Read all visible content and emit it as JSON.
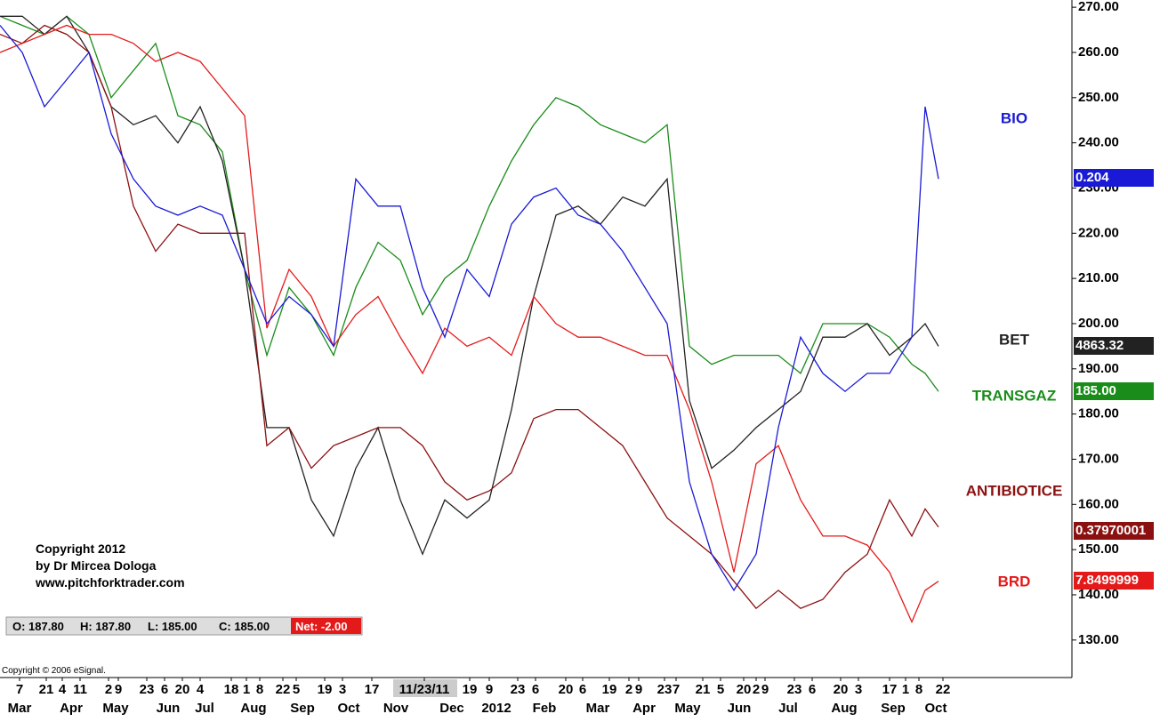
{
  "chart_data": {
    "type": "line",
    "x": [
      0,
      2.5,
      5,
      7.5,
      10,
      12.5,
      15,
      17.5,
      20,
      22.5,
      25,
      27.5,
      30,
      32.5,
      35,
      37.5,
      40,
      42.5,
      45,
      47.5,
      50,
      52.5,
      55,
      57.5,
      60,
      62.5,
      65,
      67.5,
      70,
      72.5,
      75,
      77.5,
      80,
      82.5,
      85,
      87.5,
      90,
      92.5,
      95,
      97.5,
      100,
      102.5,
      104,
      105.5
    ],
    "xlim": [
      0,
      120
    ],
    "ylim": [
      121.7,
      271.6
    ],
    "yticks": [
      {
        "value": 130,
        "label": "130.00"
      },
      {
        "value": 140,
        "label": "140.00"
      },
      {
        "value": 150,
        "label": "150.00"
      },
      {
        "value": 160,
        "label": "160.00"
      },
      {
        "value": 170,
        "label": "170.00"
      },
      {
        "value": 180,
        "label": "180.00"
      },
      {
        "value": 190,
        "label": "190.00"
      },
      {
        "value": 200,
        "label": "200.00"
      },
      {
        "value": 210,
        "label": "210.00"
      },
      {
        "value": 220,
        "label": "220.00"
      },
      {
        "value": 230,
        "label": "230.00"
      },
      {
        "value": 240,
        "label": "240.00"
      },
      {
        "value": 250,
        "label": "250.00"
      },
      {
        "value": 260,
        "label": "260.00"
      },
      {
        "value": 270,
        "label": "270.00"
      }
    ],
    "xticks": [
      {
        "value": 2.2,
        "label": "7"
      },
      {
        "value": 5.2,
        "label": "21"
      },
      {
        "value": 7,
        "label": "4"
      },
      {
        "value": 9,
        "label": "11"
      },
      {
        "value": 12.2,
        "label": "2"
      },
      {
        "value": 13.3,
        "label": "9"
      },
      {
        "value": 16.5,
        "label": "23"
      },
      {
        "value": 18.5,
        "label": "6"
      },
      {
        "value": 20.5,
        "label": "20"
      },
      {
        "value": 22.5,
        "label": "4"
      },
      {
        "value": 26,
        "label": "18"
      },
      {
        "value": 27.7,
        "label": "1"
      },
      {
        "value": 29.2,
        "label": "8"
      },
      {
        "value": 31.8,
        "label": "22"
      },
      {
        "value": 33.3,
        "label": "5"
      },
      {
        "value": 36.5,
        "label": "19"
      },
      {
        "value": 38.5,
        "label": "3"
      },
      {
        "value": 41.8,
        "label": "17"
      },
      {
        "value": 47.7,
        "label": "11/23/11"
      },
      {
        "value": 52.8,
        "label": "19"
      },
      {
        "value": 55,
        "label": "9"
      },
      {
        "value": 58.2,
        "label": "23"
      },
      {
        "value": 60.2,
        "label": "6"
      },
      {
        "value": 63.6,
        "label": "20"
      },
      {
        "value": 65.5,
        "label": "6"
      },
      {
        "value": 68.5,
        "label": "19"
      },
      {
        "value": 70.7,
        "label": "2"
      },
      {
        "value": 71.8,
        "label": "9"
      },
      {
        "value": 74.7,
        "label": "23"
      },
      {
        "value": 76,
        "label": "7"
      },
      {
        "value": 79,
        "label": "21"
      },
      {
        "value": 81,
        "label": "5"
      },
      {
        "value": 83.6,
        "label": "20"
      },
      {
        "value": 85,
        "label": "2"
      },
      {
        "value": 86,
        "label": "9"
      },
      {
        "value": 89.3,
        "label": "23"
      },
      {
        "value": 91.3,
        "label": "6"
      },
      {
        "value": 94.5,
        "label": "20"
      },
      {
        "value": 96.5,
        "label": "3"
      },
      {
        "value": 100,
        "label": "17"
      },
      {
        "value": 101.8,
        "label": "1"
      },
      {
        "value": 103.3,
        "label": "8"
      },
      {
        "value": 106,
        "label": "22"
      }
    ],
    "xticks_months": [
      {
        "value": 2.2,
        "label": "Mar"
      },
      {
        "value": 8,
        "label": "Apr"
      },
      {
        "value": 13,
        "label": "May"
      },
      {
        "value": 18.9,
        "label": "Jun"
      },
      {
        "value": 23,
        "label": "Jul"
      },
      {
        "value": 28.5,
        "label": "Aug"
      },
      {
        "value": 34,
        "label": "Sep"
      },
      {
        "value": 39.2,
        "label": "Oct"
      },
      {
        "value": 44.5,
        "label": "Nov"
      },
      {
        "value": 50.8,
        "label": "Dec"
      },
      {
        "value": 55.8,
        "label": "2012"
      },
      {
        "value": 61.2,
        "label": "Feb"
      },
      {
        "value": 67.2,
        "label": "Mar"
      },
      {
        "value": 72.4,
        "label": "Apr"
      },
      {
        "value": 77.3,
        "label": "May"
      },
      {
        "value": 83.1,
        "label": "Jun"
      },
      {
        "value": 88.6,
        "label": "Jul"
      },
      {
        "value": 94.9,
        "label": "Aug"
      },
      {
        "value": 100.4,
        "label": "Sep"
      },
      {
        "value": 105.2,
        "label": "Oct"
      }
    ],
    "series": [
      {
        "name": "TRANSGAZ",
        "color": "#1a8c1a",
        "last_label": "185.00",
        "values": [
          268,
          266,
          264,
          268,
          264,
          250,
          256,
          262,
          246,
          244,
          238,
          212,
          193,
          208,
          202,
          193,
          208,
          218,
          214,
          202,
          210,
          214,
          226,
          236,
          244,
          250,
          248,
          244,
          242,
          240,
          244,
          195,
          191,
          193,
          193,
          193,
          189,
          200,
          200,
          200,
          197,
          191,
          189,
          185
        ]
      },
      {
        "name": "BET",
        "color": "#222222",
        "last_label": "4863.32",
        "values": [
          268,
          268,
          264,
          268,
          260,
          248,
          244,
          246,
          240,
          248,
          236,
          212,
          177,
          177,
          161,
          153,
          168,
          177,
          161,
          149,
          161,
          157,
          161,
          181,
          206,
          224,
          226,
          222,
          228,
          226,
          232,
          183,
          168,
          172,
          177,
          181,
          185,
          197,
          197,
          200,
          193,
          197,
          200,
          195
        ]
      },
      {
        "name": "ANTIBIOTICE",
        "color": "#8b1111",
        "last_label": "0.37970001",
        "values": [
          264,
          262,
          266,
          264,
          260,
          248,
          226,
          216,
          222,
          220,
          220,
          220,
          173,
          177,
          168,
          173,
          175,
          177,
          177,
          173,
          165,
          161,
          163,
          167,
          179,
          181,
          181,
          177,
          173,
          165,
          157,
          153,
          149,
          143,
          137,
          141,
          137,
          139,
          145,
          149,
          161,
          153,
          159,
          155
        ]
      },
      {
        "name": "BRD",
        "color": "#e41a1a",
        "last_label": "7.8499999",
        "values": [
          260,
          262,
          264,
          266,
          264,
          264,
          262,
          258,
          260,
          258,
          252,
          246,
          199,
          212,
          206,
          195,
          202,
          206,
          197,
          189,
          199,
          195,
          197,
          193,
          206,
          200,
          197,
          197,
          195,
          193,
          193,
          181,
          165,
          145,
          169,
          173,
          161,
          153,
          153,
          151,
          145,
          134,
          141,
          143
        ]
      },
      {
        "name": "BIO",
        "color": "#1a1ad6",
        "last_label": "0.204",
        "values": [
          266,
          260,
          248,
          254,
          260,
          242,
          232,
          226,
          224,
          226,
          224,
          212,
          200,
          206,
          202,
          195,
          232,
          226,
          226,
          208,
          197,
          212,
          206,
          222,
          228,
          230,
          224,
          222,
          216,
          208,
          200,
          165,
          149,
          141,
          149,
          177,
          197,
          189,
          185,
          189,
          189,
          197,
          248,
          232
        ]
      }
    ],
    "copyright": [
      "Copyright 2012",
      "by Dr Mircea Dologa",
      "www.pitchforktrader.com"
    ],
    "ohlc": {
      "open": "O: 187.80",
      "high": "H: 187.80",
      "low": "L: 185.00",
      "close": "C: 185.00",
      "net": "Net: -2.00"
    },
    "esignal": "Copyright © 2006 eSignal."
  }
}
